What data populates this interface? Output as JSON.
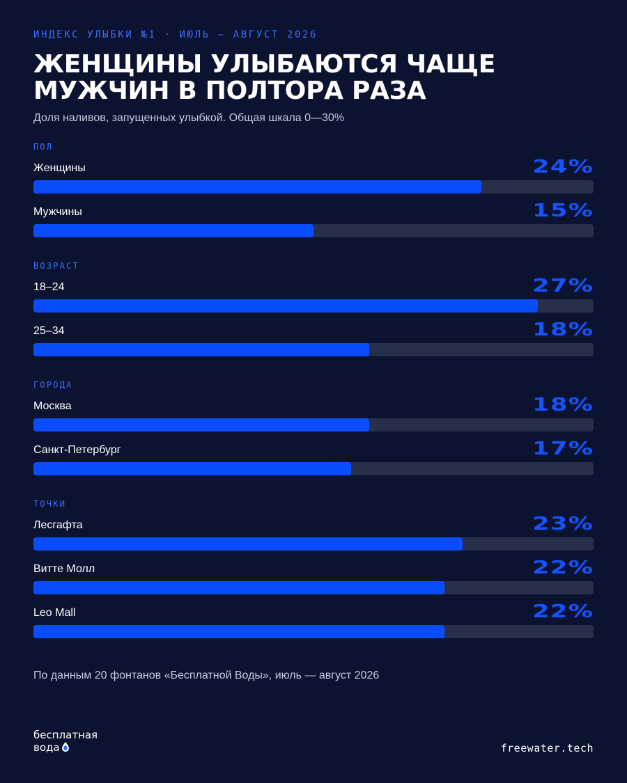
{
  "header": {
    "kicker": "ИНДЕКС УЛЫБКИ №1 · ИЮЛЬ — АВГУСТ 2026",
    "title": "Женщины улыбаются чаще мужчин в полтора раза",
    "subtitle": "Доля наливов, запущенных улыбкой. Общая шкала 0—30%"
  },
  "chart_data": {
    "type": "bar",
    "orientation": "horizontal",
    "xlim": [
      0,
      30
    ],
    "unit": "%",
    "groups": [
      {
        "label": "ПОЛ",
        "items": [
          {
            "label": "Женщины",
            "value": 24,
            "value_label": "24%"
          },
          {
            "label": "Мужчины",
            "value": 15,
            "value_label": "15%"
          }
        ]
      },
      {
        "label": "ВОЗРАСТ",
        "items": [
          {
            "label": "18–24",
            "value": 27,
            "value_label": "27%"
          },
          {
            "label": "25–34",
            "value": 18,
            "value_label": "18%"
          }
        ]
      },
      {
        "label": "ГОРОДА",
        "items": [
          {
            "label": "Москва",
            "value": 18,
            "value_label": "18%"
          },
          {
            "label": "Санкт-Петербург",
            "value": 17,
            "value_label": "17%"
          }
        ]
      },
      {
        "label": "ТОЧКИ",
        "items": [
          {
            "label": "Лесгафта",
            "value": 23,
            "value_label": "23%"
          },
          {
            "label": "Витте Молл",
            "value": 22,
            "value_label": "22%"
          },
          {
            "label": "Leo Mall",
            "value": 22,
            "value_label": "22%"
          }
        ]
      }
    ]
  },
  "footer": {
    "note": "По данным 20 фонтанов «Бесплатной Воды», июль — август 2026",
    "logo_line1": "бесплатная",
    "logo_line2": "вода",
    "site": "freewater.tech"
  },
  "colors": {
    "background": "#0b1330",
    "accent": "#0a4dff",
    "track": "#272f4a",
    "label_blue": "#3b6cff"
  }
}
